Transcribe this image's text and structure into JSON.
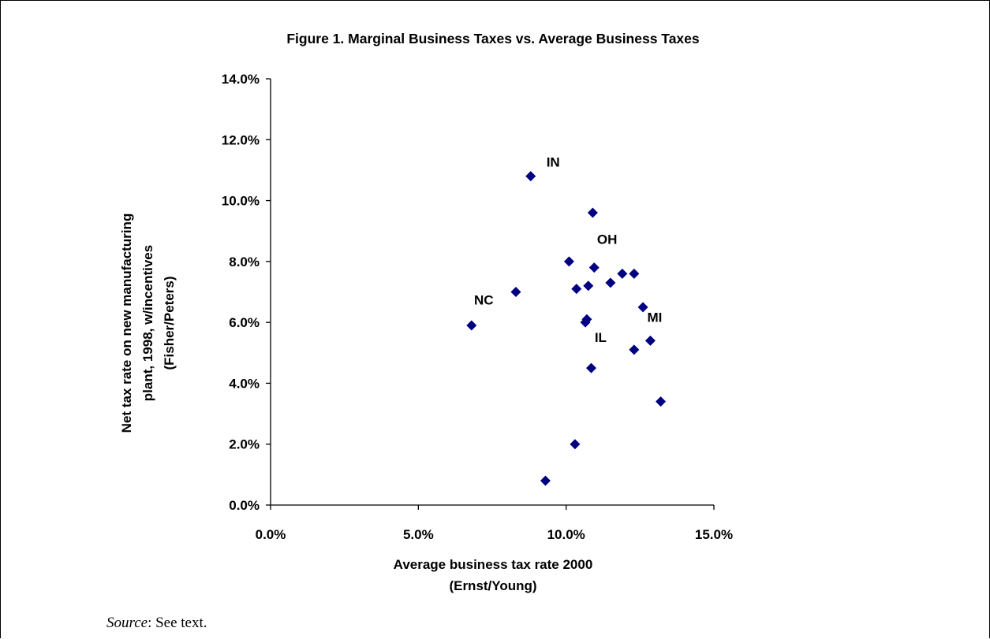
{
  "chart_data": {
    "type": "scatter",
    "title": "Figure 1.  Marginal Business Taxes vs. Average Business Taxes",
    "xlabel_lines": [
      "Average business tax rate 2000",
      "(Ernst/Young)"
    ],
    "ylabel_lines": [
      "Net tax rate on new manufacturing",
      "plant, 1998, w/incentives",
      "(Fisher/Peters)"
    ],
    "xlim": [
      0,
      15
    ],
    "ylim": [
      0,
      14
    ],
    "x_ticks": [
      {
        "value": 0,
        "label": "0.0%"
      },
      {
        "value": 5,
        "label": "5.0%"
      },
      {
        "value": 10,
        "label": "10.0%"
      },
      {
        "value": 15,
        "label": "15.0%"
      }
    ],
    "y_ticks": [
      {
        "value": 0,
        "label": "0.0%"
      },
      {
        "value": 2,
        "label": "2.0%"
      },
      {
        "value": 4,
        "label": "4.0%"
      },
      {
        "value": 6,
        "label": "6.0%"
      },
      {
        "value": 8,
        "label": "8.0%"
      },
      {
        "value": 10,
        "label": "10.0%"
      },
      {
        "value": 12,
        "label": "12.0%"
      },
      {
        "value": 14,
        "label": "14.0%"
      }
    ],
    "marker_color": "#000080",
    "grid": false,
    "points": [
      {
        "x": 6.8,
        "y": 5.9
      },
      {
        "x": 8.3,
        "y": 7.0
      },
      {
        "x": 8.8,
        "y": 10.8
      },
      {
        "x": 9.3,
        "y": 0.8
      },
      {
        "x": 10.1,
        "y": 8.0
      },
      {
        "x": 10.3,
        "y": 2.0
      },
      {
        "x": 10.35,
        "y": 7.1
      },
      {
        "x": 10.65,
        "y": 6.0
      },
      {
        "x": 10.7,
        "y": 6.1
      },
      {
        "x": 10.75,
        "y": 7.2
      },
      {
        "x": 10.85,
        "y": 4.5
      },
      {
        "x": 10.9,
        "y": 9.6
      },
      {
        "x": 10.95,
        "y": 7.8
      },
      {
        "x": 11.5,
        "y": 7.3
      },
      {
        "x": 11.9,
        "y": 7.6
      },
      {
        "x": 12.3,
        "y": 7.6
      },
      {
        "x": 12.3,
        "y": 5.1
      },
      {
        "x": 12.6,
        "y": 6.5
      },
      {
        "x": 12.85,
        "y": 5.4
      },
      {
        "x": 13.2,
        "y": 3.4
      }
    ],
    "annotations": [
      {
        "text": "IN",
        "x": 8.8,
        "y": 10.8,
        "dx": 20,
        "dy": -12
      },
      {
        "text": "NC",
        "x": 8.3,
        "y": 7.0,
        "dx": -53,
        "dy": 16
      },
      {
        "text": "OH",
        "x": 11.9,
        "y": 7.6,
        "dx": -32,
        "dy": -38
      },
      {
        "text": "IL",
        "x": 12.3,
        "y": 5.1,
        "dx": -50,
        "dy": -10
      },
      {
        "text": "MI",
        "x": 12.85,
        "y": 5.4,
        "dx": -4,
        "dy": -24
      }
    ]
  },
  "source": {
    "label": "Source",
    "text": ":  See text."
  }
}
